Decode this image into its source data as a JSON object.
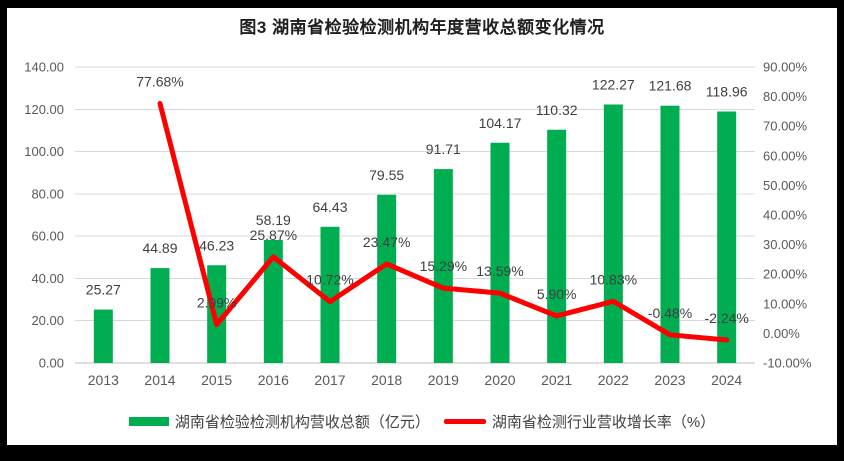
{
  "figure": {
    "title": "图3 湖南省检验检测机构年度营收总额变化情况"
  },
  "colors": {
    "bar": "#00AD51",
    "line": "#FF0000",
    "grid": "#D9D9D9",
    "axis_line": "#BFBFBF",
    "axis_text": "#595959",
    "label_text": "#3F3F3F",
    "frame": "#000000",
    "background": "#FFFFFF"
  },
  "legend": {
    "items": [
      {
        "label": "湖南省检验检测机构营收总额（亿元）",
        "swatch": "bar",
        "color": "#00AD51"
      },
      {
        "label": "湖南省检测行业营收增长率（%）",
        "swatch": "line",
        "color": "#FF0000"
      }
    ]
  },
  "chart_data": {
    "type": "bar",
    "subtype": "bar-line-combo",
    "title": "图3 湖南省检验检测机构年度营收总额变化情况",
    "categories": [
      "2013",
      "2014",
      "2015",
      "2016",
      "2017",
      "2018",
      "2019",
      "2020",
      "2021",
      "2022",
      "2023",
      "2024"
    ],
    "series": [
      {
        "name": "湖南省检验检测机构营收总额（亿元）",
        "type": "bar",
        "axis": "left",
        "color": "#00AD51",
        "values": [
          25.27,
          44.89,
          46.23,
          58.19,
          64.43,
          79.55,
          91.71,
          104.17,
          110.32,
          122.27,
          121.68,
          118.96
        ]
      },
      {
        "name": "湖南省检测行业营收增长率（%）",
        "type": "line",
        "axis": "right",
        "color": "#FF0000",
        "values": [
          null,
          77.68,
          2.99,
          25.87,
          10.72,
          23.47,
          15.29,
          13.59,
          5.9,
          10.83,
          -0.48,
          -2.24
        ]
      }
    ],
    "left_axis": {
      "min": 0,
      "max": 140,
      "step": 20,
      "ticks": [
        "0.00",
        "20.00",
        "40.00",
        "60.00",
        "80.00",
        "100.00",
        "120.00",
        "140.00"
      ]
    },
    "right_axis": {
      "min": -10,
      "max": 90,
      "step": 10,
      "ticks": [
        "-10.00%",
        "0.00%",
        "10.00%",
        "20.00%",
        "30.00%",
        "40.00%",
        "50.00%",
        "60.00%",
        "70.00%",
        "80.00%",
        "90.00%"
      ]
    },
    "grid": true,
    "legend_position": "bottom"
  }
}
